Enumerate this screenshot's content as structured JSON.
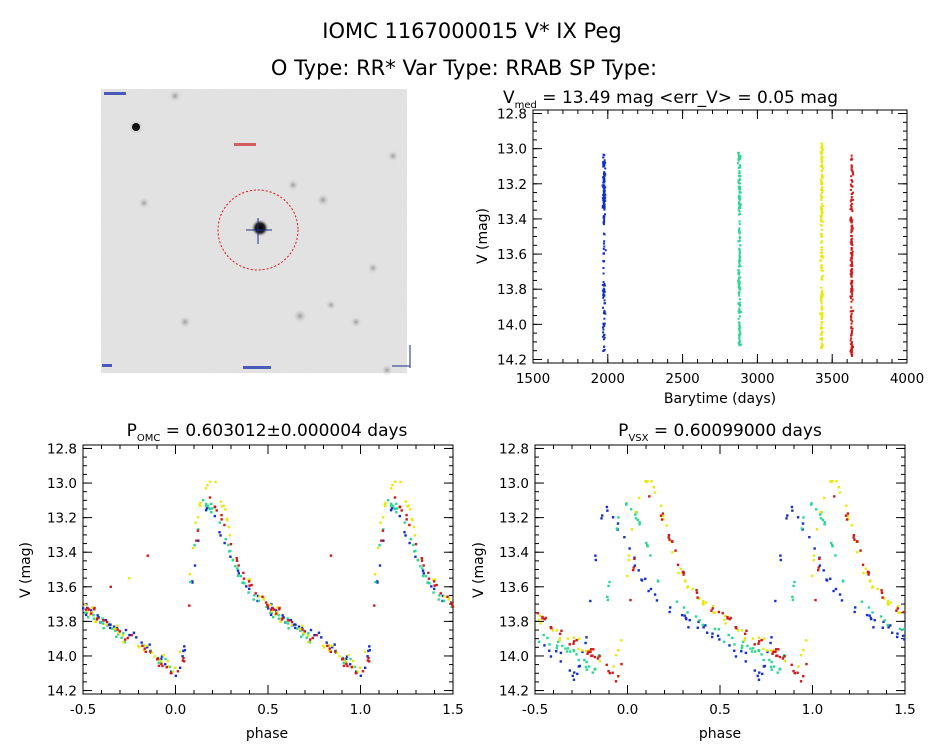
{
  "figure": {
    "title_line1": "IOMC 1167000015    V* IX Peg",
    "title_line2": "O Type: RR*  Var Type: RRAB  SP Type:"
  },
  "colors": {
    "s1": "#1530c8",
    "s2": "#28d890",
    "s3": "#e8e80a",
    "s4": "#d21818"
  },
  "chart_data": [
    {
      "type": "image",
      "id": "image",
      "icon": "star-field-thumbnail",
      "description_marks": [
        "circle-around-target",
        "crosshair-on-target"
      ]
    },
    {
      "type": "scatter",
      "id": "lc",
      "title_main": "V",
      "title_sub": "med",
      "title_rest": " = 13.49 mag <err_V> = 0.05 mag",
      "xlabel": "Barytime (days)",
      "ylabel": "V (mag)",
      "xlim": [
        1500,
        4000
      ],
      "ylim": [
        14.22,
        12.78
      ],
      "y_inverted": true,
      "xticks": [
        1500,
        2000,
        2500,
        3000,
        3500,
        4000
      ],
      "yticks": [
        12.8,
        13.0,
        13.2,
        13.4,
        13.6,
        13.8,
        14.0,
        14.2
      ],
      "series": [
        {
          "color_key": "s1",
          "clusters": [
            {
              "x": 1975,
              "ymin": 13.02,
              "ymax": 14.18,
              "dense_min": 13.05,
              "dense_max": 13.35
            }
          ]
        },
        {
          "color_key": "s2",
          "clusters": [
            {
              "x": 2880,
              "ymin": 13.02,
              "ymax": 14.12
            }
          ]
        },
        {
          "color_key": "s3",
          "clusters": [
            {
              "x": 3430,
              "ymin": 12.97,
              "ymax": 14.15
            }
          ]
        },
        {
          "color_key": "s4",
          "clusters": [
            {
              "x": 3630,
              "ymin": 13.02,
              "ymax": 14.18
            }
          ]
        }
      ]
    },
    {
      "type": "scatter",
      "id": "pomc",
      "title_main": "P",
      "title_sub": "OMC",
      "title_rest": " = 0.603012±0.000004 days",
      "xlabel": "phase",
      "ylabel": "V (mag)",
      "xlim": [
        -0.5,
        1.5
      ],
      "ylim": [
        14.22,
        12.78
      ],
      "y_inverted": true,
      "xticks": [
        -0.5,
        0.0,
        0.5,
        1.0,
        1.5
      ],
      "xtick_labels": [
        "-0.5",
        "0.0",
        "0.5",
        "1.0",
        "1.5"
      ],
      "yticks": [
        12.8,
        13.0,
        13.2,
        13.4,
        13.6,
        13.8,
        14.0,
        14.2
      ],
      "curve_description": "folded RRab light curve: minimum ~14.1 near phase 0.0, sharp rise to maximum ~13.0 near phase 0.2, decline to ~13.7 by phase 0.5, repeated over two cycles",
      "series": [
        {
          "color_key": "s1",
          "curve": [
            [
              0.0,
              14.12
            ],
            [
              0.05,
              13.95
            ],
            [
              0.1,
              13.5
            ],
            [
              0.15,
              13.15
            ],
            [
              0.2,
              13.18
            ],
            [
              0.25,
              13.3
            ],
            [
              0.3,
              13.4
            ],
            [
              0.35,
              13.55
            ],
            [
              0.45,
              13.68
            ],
            [
              0.55,
              13.76
            ],
            [
              0.65,
              13.82
            ],
            [
              0.75,
              13.88
            ],
            [
              0.85,
              13.96
            ],
            [
              0.95,
              14.05
            ],
            [
              1.0,
              14.12
            ]
          ],
          "phase_offset": 0.0
        },
        {
          "color_key": "s2",
          "curve": [
            [
              0.0,
              14.1
            ],
            [
              0.05,
              13.9
            ],
            [
              0.1,
              13.4
            ],
            [
              0.15,
              13.1
            ],
            [
              0.2,
              13.15
            ],
            [
              0.25,
              13.25
            ],
            [
              0.3,
              13.4
            ],
            [
              0.35,
              13.55
            ],
            [
              0.45,
              13.7
            ],
            [
              0.55,
              13.78
            ],
            [
              0.65,
              13.85
            ],
            [
              0.75,
              13.9
            ],
            [
              0.85,
              13.95
            ],
            [
              0.95,
              14.05
            ],
            [
              1.0,
              14.1
            ]
          ],
          "phase_offset": 0.0
        },
        {
          "color_key": "s3",
          "curve": [
            [
              0.0,
              14.08
            ],
            [
              0.05,
              13.85
            ],
            [
              0.1,
              13.3
            ],
            [
              0.15,
              13.05
            ],
            [
              0.2,
              12.97
            ],
            [
              0.25,
              13.1
            ],
            [
              0.3,
              13.3
            ],
            [
              0.35,
              13.5
            ],
            [
              0.45,
              13.65
            ],
            [
              0.55,
              13.75
            ],
            [
              0.65,
              13.85
            ],
            [
              0.75,
              13.9
            ],
            [
              0.85,
              13.96
            ],
            [
              0.95,
              14.03
            ],
            [
              1.0,
              14.08
            ]
          ],
          "phase_offset": 0.0
        },
        {
          "color_key": "s4",
          "curve": [
            [
              0.0,
              14.15
            ],
            [
              0.05,
              14.0
            ],
            [
              0.1,
              13.4
            ],
            [
              0.15,
              13.1
            ],
            [
              0.2,
              13.1
            ],
            [
              0.25,
              13.2
            ],
            [
              0.3,
              13.35
            ],
            [
              0.35,
              13.5
            ],
            [
              0.45,
              13.65
            ],
            [
              0.55,
              13.75
            ],
            [
              0.65,
              13.83
            ],
            [
              0.75,
              13.9
            ],
            [
              0.85,
              13.97
            ],
            [
              0.95,
              14.06
            ],
            [
              1.0,
              14.15
            ]
          ],
          "phase_offset": 0.0
        }
      ]
    },
    {
      "type": "scatter",
      "id": "pvsx",
      "title_main": "P",
      "title_sub": "VSX",
      "title_rest": " = 0.60099000 days",
      "xlabel": "phase",
      "ylabel": "V (mag)",
      "xlim": [
        -0.5,
        1.5
      ],
      "ylim": [
        14.22,
        12.78
      ],
      "y_inverted": true,
      "xticks": [
        -0.5,
        0.0,
        0.5,
        1.0,
        1.5
      ],
      "xtick_labels": [
        "-0.5",
        "0.0",
        "0.5",
        "1.0",
        "1.5"
      ],
      "yticks": [
        12.8,
        13.0,
        13.2,
        13.4,
        13.6,
        13.8,
        14.0,
        14.2
      ],
      "curve_description": "same light curve folded with the VSX period: the four seasons are shifted in phase relative to each other",
      "series": [
        {
          "color_key": "s1",
          "curve": [
            [
              0.0,
              14.12
            ],
            [
              0.05,
              13.95
            ],
            [
              0.1,
              13.5
            ],
            [
              0.15,
              13.15
            ],
            [
              0.2,
              13.18
            ],
            [
              0.25,
              13.3
            ],
            [
              0.3,
              13.4
            ],
            [
              0.35,
              13.55
            ],
            [
              0.45,
              13.68
            ],
            [
              0.55,
              13.76
            ],
            [
              0.65,
              13.82
            ],
            [
              0.75,
              13.88
            ],
            [
              0.85,
              13.96
            ],
            [
              0.95,
              14.05
            ],
            [
              1.0,
              14.12
            ]
          ],
          "phase_offset": -0.28
        },
        {
          "color_key": "s2",
          "curve": [
            [
              0.0,
              14.1
            ],
            [
              0.05,
              13.9
            ],
            [
              0.1,
              13.4
            ],
            [
              0.15,
              13.1
            ],
            [
              0.2,
              13.15
            ],
            [
              0.25,
              13.25
            ],
            [
              0.3,
              13.4
            ],
            [
              0.35,
              13.55
            ],
            [
              0.45,
              13.7
            ],
            [
              0.55,
              13.78
            ],
            [
              0.65,
              13.85
            ],
            [
              0.75,
              13.9
            ],
            [
              0.85,
              13.95
            ],
            [
              0.95,
              14.05
            ],
            [
              1.0,
              14.1
            ]
          ],
          "phase_offset": -0.18
        },
        {
          "color_key": "s3",
          "curve": [
            [
              0.0,
              14.08
            ],
            [
              0.05,
              13.85
            ],
            [
              0.1,
              13.3
            ],
            [
              0.15,
              13.05
            ],
            [
              0.2,
              12.97
            ],
            [
              0.25,
              13.1
            ],
            [
              0.3,
              13.3
            ],
            [
              0.35,
              13.5
            ],
            [
              0.45,
              13.65
            ],
            [
              0.55,
              13.75
            ],
            [
              0.65,
              13.85
            ],
            [
              0.75,
              13.9
            ],
            [
              0.85,
              13.96
            ],
            [
              0.95,
              14.03
            ],
            [
              1.0,
              14.08
            ]
          ],
          "phase_offset": -0.08
        },
        {
          "color_key": "s4",
          "curve": [
            [
              0.0,
              14.15
            ],
            [
              0.05,
              14.0
            ],
            [
              0.1,
              13.4
            ],
            [
              0.15,
              13.1
            ],
            [
              0.2,
              13.1
            ],
            [
              0.25,
              13.2
            ],
            [
              0.3,
              13.35
            ],
            [
              0.35,
              13.5
            ],
            [
              0.45,
              13.65
            ],
            [
              0.55,
              13.75
            ],
            [
              0.65,
              13.83
            ],
            [
              0.75,
              13.9
            ],
            [
              0.85,
              13.97
            ],
            [
              0.95,
              14.06
            ],
            [
              1.0,
              14.15
            ]
          ],
          "phase_offset": -0.06
        }
      ]
    }
  ]
}
